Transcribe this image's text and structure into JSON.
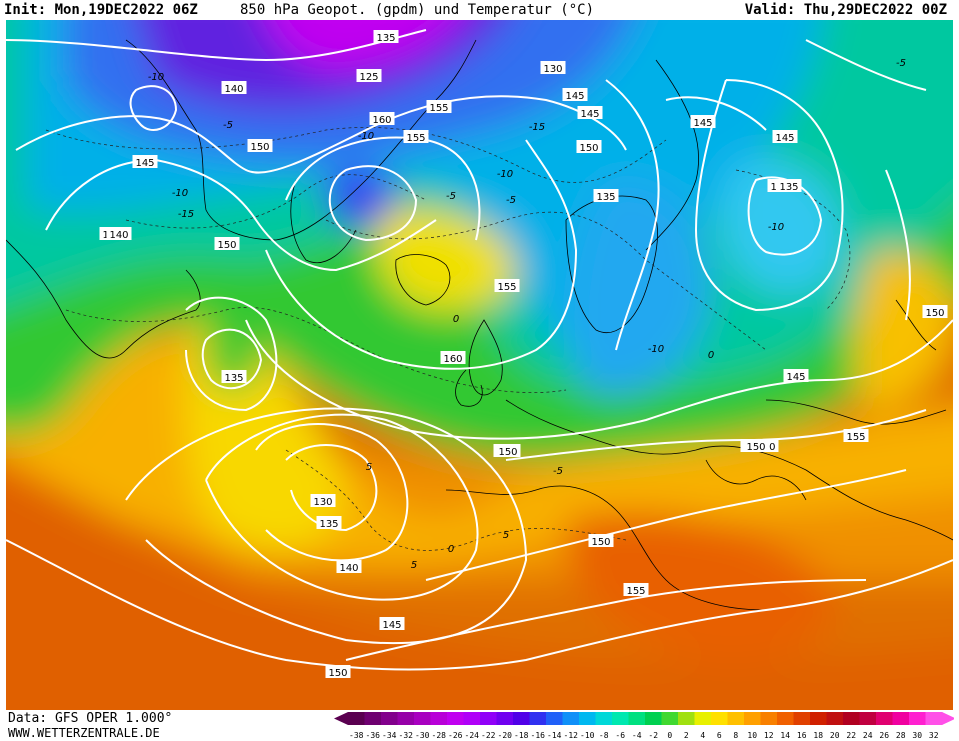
{
  "header": {
    "init": "Init: Mon,19DEC2022 06Z",
    "title": "850 hPa Geopot. (gpdm) und Temperatur (°C)",
    "valid": "Valid: Thu,29DEC2022 00Z"
  },
  "footer": {
    "data_source": "Data: GFS OPER 1.000°",
    "website": "WWW.WETTERZENTRALE.DE"
  },
  "geopotential_labels": [
    "135",
    "140",
    "125",
    "130",
    "145",
    "150",
    "155",
    "160",
    "140",
    "145",
    "150",
    "155",
    "145",
    "150",
    "135",
    "130",
    "135",
    "140",
    "145",
    "150",
    "155",
    "150",
    "145",
    "135",
    "140",
    "145",
    "160",
    "150",
    "155",
    "150",
    "135",
    "145",
    "150",
    "155",
    "150",
    "155",
    "150",
    "140"
  ],
  "temperature_labels": [
    "-10",
    "-5",
    "-10",
    "-15",
    "-10",
    "-15",
    "-5",
    "-10",
    "-10",
    "-5",
    "0",
    "-10",
    "0",
    "-5",
    "5",
    "0",
    "5",
    "5",
    "-5"
  ],
  "colorbar": {
    "ticks": [
      "-38",
      "-36",
      "-34",
      "-32",
      "-30",
      "-28",
      "-26",
      "-24",
      "-22",
      "-20",
      "-18",
      "-16",
      "-14",
      "-12",
      "-10",
      "-8",
      "-6",
      "-4",
      "-2",
      "0",
      "2",
      "4",
      "6",
      "8",
      "10",
      "12",
      "14",
      "16",
      "18",
      "20",
      "22",
      "24",
      "26",
      "28",
      "30",
      "32"
    ],
    "colors": [
      "#5a0050",
      "#6e0070",
      "#82008c",
      "#9600a8",
      "#a800c0",
      "#b800d8",
      "#c000f0",
      "#b000f8",
      "#9000f8",
      "#7000f0",
      "#5000e8",
      "#3030f0",
      "#2060f8",
      "#1090f8",
      "#00b8f0",
      "#00d8d8",
      "#00e8b0",
      "#00e080",
      "#00d050",
      "#40d830",
      "#a0e010",
      "#e8f000",
      "#ffe000",
      "#ffc000",
      "#ffa000",
      "#f88000",
      "#f06000",
      "#e04000",
      "#d02000",
      "#c01010",
      "#b00020",
      "#c00040",
      "#e00070",
      "#f000a0",
      "#ff20d0",
      "#ff50e8"
    ]
  }
}
